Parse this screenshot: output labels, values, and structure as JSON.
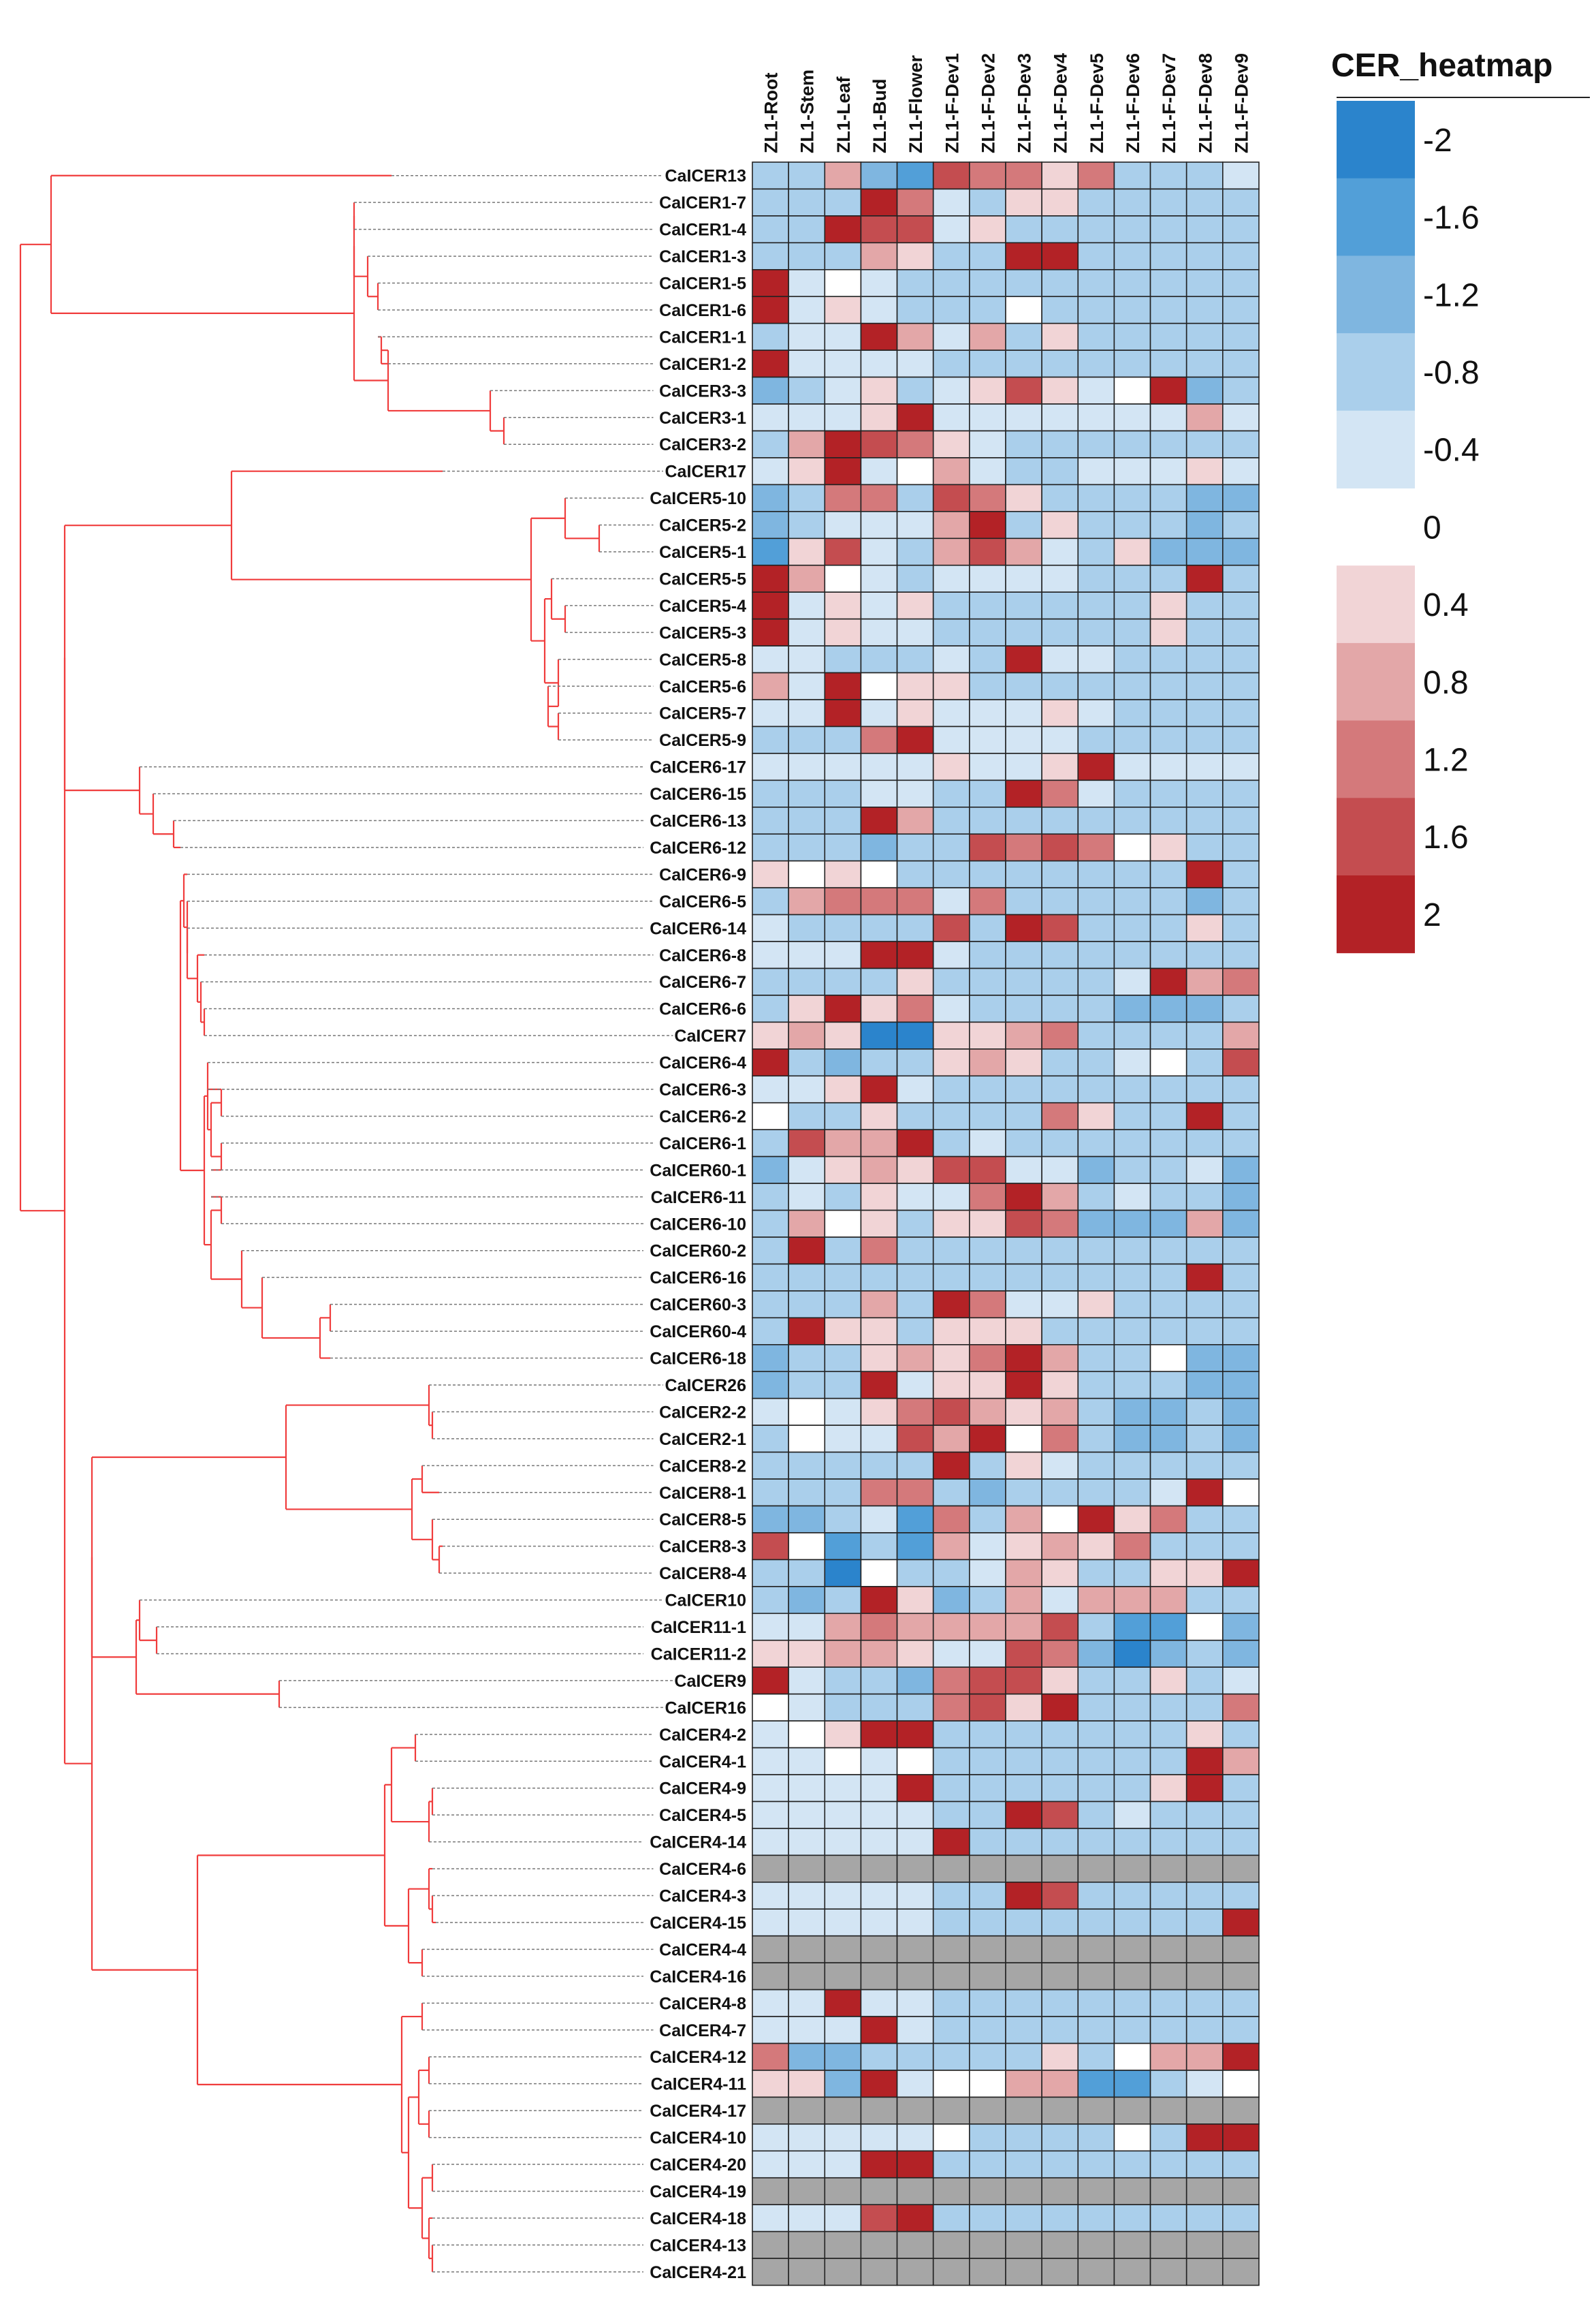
{
  "chart_data": {
    "type": "heatmap",
    "title": "CER_heatmap",
    "columns": [
      "ZL1-Root",
      "ZL1-Stem",
      "ZL1-Leaf",
      "ZL1-Bud",
      "ZL1-Flower",
      "ZL1-F-Dev1",
      "ZL1-F-Dev2",
      "ZL1-F-Dev3",
      "ZL1-F-Dev4",
      "ZL1-F-Dev5",
      "ZL1-F-Dev6",
      "ZL1-F-Dev7",
      "ZL1-F-Dev8",
      "ZL1-F-Dev9"
    ],
    "rows": [
      "CaICER13",
      "CaICER1-7",
      "CaICER1-4",
      "CaICER1-3",
      "CaICER1-5",
      "CaICER1-6",
      "CaICER1-1",
      "CaICER1-2",
      "CaICER3-3",
      "CaICER3-1",
      "CaICER3-2",
      "CaICER17",
      "CaICER5-10",
      "CaICER5-2",
      "CaICER5-1",
      "CaICER5-5",
      "CaICER5-4",
      "CaICER5-3",
      "CaICER5-8",
      "CaICER5-6",
      "CaICER5-7",
      "CaICER5-9",
      "CaICER6-17",
      "CaICER6-15",
      "CaICER6-13",
      "CaICER6-12",
      "CaICER6-9",
      "CaICER6-5",
      "CaICER6-14",
      "CaICER6-8",
      "CaICER6-7",
      "CaICER6-6",
      "CaICER7",
      "CaICER6-4",
      "CaICER6-3",
      "CaICER6-2",
      "CaICER6-1",
      "CaICER60-1",
      "CaICER6-11",
      "CaICER6-10",
      "CaICER60-2",
      "CaICER6-16",
      "CaICER60-3",
      "CaICER60-4",
      "CaICER6-18",
      "CaICER26",
      "CaICER2-2",
      "CaICER2-1",
      "CaICER8-2",
      "CaICER8-1",
      "CaICER8-5",
      "CaICER8-3",
      "CaICER8-4",
      "CaICER10",
      "CaICER11-1",
      "CaICER11-2",
      "CaICER9",
      "CaICER16",
      "CaICER4-2",
      "CaICER4-1",
      "CaICER4-9",
      "CaICER4-5",
      "CaICER4-14",
      "CaICER4-6",
      "CaICER4-3",
      "CaICER4-15",
      "CaICER4-4",
      "CaICER4-16",
      "CaICER4-8",
      "CaICER4-7",
      "CaICER4-12",
      "CaICER4-11",
      "CaICER4-17",
      "CaICER4-10",
      "CaICER4-20",
      "CaICER4-19",
      "CaICER4-18",
      "CaICER4-13",
      "CaICER4-21"
    ],
    "values": [
      [
        -0.8,
        -0.8,
        0.8,
        -1.2,
        -1.6,
        1.6,
        1.2,
        1.2,
        0.4,
        1.2,
        -0.8,
        -0.8,
        -0.8,
        -0.4
      ],
      [
        -0.8,
        -0.8,
        -0.8,
        2,
        1.2,
        -0.4,
        -0.8,
        0.4,
        0.4,
        -0.8,
        -0.8,
        -0.8,
        -0.8,
        -0.8
      ],
      [
        -0.8,
        -0.8,
        2,
        1.6,
        1.6,
        -0.4,
        0.4,
        -0.8,
        -0.8,
        -0.8,
        -0.8,
        -0.8,
        -0.8,
        -0.8
      ],
      [
        -0.8,
        -0.8,
        -0.8,
        0.8,
        0.4,
        -0.8,
        -0.8,
        2,
        2,
        -0.8,
        -0.8,
        -0.8,
        -0.8,
        -0.8
      ],
      [
        2,
        -0.4,
        0,
        -0.4,
        -0.8,
        -0.8,
        -0.8,
        -0.8,
        -0.8,
        -0.8,
        -0.8,
        -0.8,
        -0.8,
        -0.8
      ],
      [
        2,
        -0.4,
        0.4,
        -0.4,
        -0.8,
        -0.8,
        -0.8,
        0,
        -0.8,
        -0.8,
        -0.8,
        -0.8,
        -0.8,
        -0.8
      ],
      [
        -0.8,
        -0.4,
        -0.4,
        2,
        0.8,
        -0.4,
        0.8,
        -0.8,
        0.4,
        -0.8,
        -0.8,
        -0.8,
        -0.8,
        -0.8
      ],
      [
        2,
        -0.4,
        -0.4,
        -0.4,
        -0.4,
        -0.8,
        -0.8,
        -0.8,
        -0.8,
        -0.8,
        -0.8,
        -0.8,
        -0.8,
        -0.8
      ],
      [
        -1.2,
        -0.8,
        -0.4,
        0.4,
        -0.8,
        -0.4,
        0.4,
        1.6,
        0.4,
        -0.4,
        0,
        2,
        -1.2,
        -0.8
      ],
      [
        -0.4,
        -0.4,
        -0.4,
        0.4,
        2,
        -0.4,
        -0.4,
        -0.4,
        -0.4,
        -0.4,
        -0.4,
        -0.4,
        0.8,
        -0.4
      ],
      [
        -0.8,
        0.8,
        2,
        1.6,
        1.2,
        0.4,
        -0.4,
        -0.8,
        -0.8,
        -0.8,
        -0.8,
        -0.8,
        -0.8,
        -0.8
      ],
      [
        -0.4,
        0.4,
        2,
        -0.4,
        0,
        0.8,
        -0.4,
        -0.8,
        -0.8,
        -0.4,
        -0.4,
        -0.4,
        0.4,
        -0.4
      ],
      [
        -1.2,
        -0.8,
        1.2,
        1.2,
        -0.8,
        1.6,
        1.2,
        0.4,
        -0.8,
        -0.8,
        -0.8,
        -0.8,
        -1.2,
        -1.2
      ],
      [
        -1.2,
        -0.8,
        -0.4,
        -0.4,
        -0.4,
        0.8,
        2,
        -0.8,
        0.4,
        -0.8,
        -0.8,
        -0.8,
        -1.2,
        -0.8
      ],
      [
        -1.6,
        0.4,
        1.6,
        -0.4,
        -0.8,
        0.8,
        1.6,
        0.8,
        -0.4,
        -0.8,
        0.4,
        -1.2,
        -1.2,
        -1.2
      ],
      [
        2,
        0.8,
        0,
        -0.4,
        -0.8,
        -0.4,
        -0.4,
        -0.4,
        -0.4,
        -0.8,
        -0.8,
        -0.8,
        2,
        -0.8
      ],
      [
        2,
        -0.4,
        0.4,
        -0.4,
        0.4,
        -0.8,
        -0.8,
        -0.8,
        -0.8,
        -0.8,
        -0.8,
        0.4,
        -0.8,
        -0.8
      ],
      [
        2,
        -0.4,
        0.4,
        -0.4,
        -0.4,
        -0.8,
        -0.8,
        -0.8,
        -0.8,
        -0.8,
        -0.8,
        0.4,
        -0.8,
        -0.8
      ],
      [
        -0.4,
        -0.4,
        -0.8,
        -0.8,
        -0.8,
        -0.4,
        -0.8,
        2,
        -0.4,
        -0.4,
        -0.8,
        -0.8,
        -0.8,
        -0.8
      ],
      [
        0.8,
        -0.4,
        2,
        0,
        0.4,
        0.4,
        -0.8,
        -0.8,
        -0.8,
        -0.8,
        -0.8,
        -0.8,
        -0.8,
        -0.8
      ],
      [
        -0.4,
        -0.4,
        2,
        -0.4,
        0.4,
        -0.4,
        -0.4,
        -0.4,
        0.4,
        -0.4,
        -0.8,
        -0.8,
        -0.8,
        -0.8
      ],
      [
        -0.8,
        -0.8,
        -0.8,
        1.2,
        2,
        -0.4,
        -0.4,
        -0.4,
        -0.4,
        -0.8,
        -0.8,
        -0.8,
        -0.8,
        -0.8
      ],
      [
        -0.4,
        -0.4,
        -0.4,
        -0.4,
        -0.4,
        0.4,
        -0.4,
        -0.4,
        0.4,
        2,
        -0.4,
        -0.4,
        -0.4,
        -0.4
      ],
      [
        -0.8,
        -0.8,
        -0.8,
        -0.4,
        -0.4,
        -0.8,
        -0.8,
        2,
        1.2,
        -0.4,
        -0.8,
        -0.8,
        -0.8,
        -0.8
      ],
      [
        -0.8,
        -0.8,
        -0.8,
        2,
        0.8,
        -0.8,
        -0.8,
        -0.8,
        -0.8,
        -0.8,
        -0.8,
        -0.8,
        -0.8,
        -0.8
      ],
      [
        -0.8,
        -0.8,
        -0.8,
        -1.2,
        -0.8,
        -0.8,
        1.6,
        1.2,
        1.6,
        1.2,
        0,
        0.4,
        -0.8,
        -0.8
      ],
      [
        0.4,
        0,
        0.4,
        0,
        -0.8,
        -0.8,
        -0.8,
        -0.8,
        -0.8,
        -0.8,
        -0.8,
        -0.8,
        2,
        -0.8
      ],
      [
        -0.8,
        0.8,
        1.2,
        1.2,
        1.2,
        -0.4,
        1.2,
        -0.8,
        -0.8,
        -0.8,
        -0.8,
        -0.8,
        -1.2,
        -0.8
      ],
      [
        -0.4,
        -0.8,
        -0.8,
        -0.8,
        -0.8,
        1.6,
        -0.8,
        2,
        1.6,
        -0.8,
        -0.8,
        -0.8,
        0.4,
        -0.8
      ],
      [
        -0.4,
        -0.4,
        -0.4,
        2,
        2,
        -0.4,
        -0.8,
        -0.8,
        -0.8,
        -0.8,
        -0.8,
        -0.8,
        -0.8,
        -0.8
      ],
      [
        -0.8,
        -0.8,
        -0.8,
        -0.8,
        0.4,
        -0.8,
        -0.8,
        -0.8,
        -0.8,
        -0.8,
        -0.4,
        2,
        0.8,
        1.2
      ],
      [
        -0.8,
        0.4,
        2,
        0.4,
        1.2,
        -0.4,
        -0.8,
        -0.8,
        -0.8,
        -0.8,
        -1.2,
        -1.2,
        -1.2,
        -0.8
      ],
      [
        0.4,
        0.8,
        0.4,
        -2,
        -2,
        0.4,
        0.4,
        0.8,
        1.2,
        -0.8,
        -0.8,
        -0.8,
        -0.8,
        0.8
      ],
      [
        2,
        -0.8,
        -1.2,
        -0.8,
        -0.8,
        0.4,
        0.8,
        0.4,
        -0.8,
        -0.8,
        -0.4,
        0,
        -0.8,
        1.6
      ],
      [
        -0.4,
        -0.4,
        0.4,
        2,
        -0.4,
        -0.8,
        -0.8,
        -0.8,
        -0.8,
        -0.8,
        -0.8,
        -0.8,
        -0.8,
        -0.8
      ],
      [
        0,
        -0.8,
        -0.8,
        0.4,
        -0.8,
        -0.8,
        -0.8,
        -0.8,
        1.2,
        0.4,
        -0.8,
        -0.8,
        2,
        -0.8
      ],
      [
        -0.8,
        1.6,
        0.8,
        0.8,
        2,
        -0.8,
        -0.4,
        -0.8,
        -0.8,
        -0.8,
        -0.8,
        -0.8,
        -0.8,
        -0.8
      ],
      [
        -1.2,
        -0.4,
        0.4,
        0.8,
        0.4,
        1.6,
        1.6,
        -0.4,
        -0.4,
        -1.2,
        -0.8,
        -0.8,
        -0.4,
        -1.2
      ],
      [
        -0.8,
        -0.4,
        -0.8,
        0.4,
        -0.4,
        -0.4,
        1.2,
        2,
        0.8,
        -0.8,
        -0.4,
        -0.8,
        -0.8,
        -1.2
      ],
      [
        -0.8,
        0.8,
        0,
        0.4,
        -0.8,
        0.4,
        0.4,
        1.6,
        1.2,
        -1.2,
        -1.2,
        -1.2,
        0.8,
        -1.2
      ],
      [
        -0.8,
        2,
        -0.8,
        1.2,
        -0.8,
        -0.8,
        -0.8,
        -0.8,
        -0.8,
        -0.8,
        -0.8,
        -0.8,
        -0.8,
        -0.8
      ],
      [
        -0.8,
        -0.8,
        -0.8,
        -0.8,
        -0.8,
        -0.8,
        -0.8,
        -0.8,
        -0.8,
        -0.8,
        -0.8,
        -0.8,
        2,
        -0.8
      ],
      [
        -0.8,
        -0.8,
        -0.8,
        0.8,
        -0.8,
        2,
        1.2,
        -0.4,
        -0.4,
        0.4,
        -0.8,
        -0.8,
        -0.8,
        -0.8
      ],
      [
        -0.8,
        2,
        0.4,
        0.4,
        -0.8,
        0.4,
        0.4,
        0.4,
        -0.8,
        -0.8,
        -0.8,
        -0.8,
        -0.8,
        -0.8
      ],
      [
        -1.2,
        -0.8,
        -0.8,
        0.4,
        0.8,
        0.4,
        1.2,
        2,
        0.8,
        -0.8,
        -0.8,
        0,
        -1.2,
        -1.2
      ],
      [
        -1.2,
        -0.8,
        -0.8,
        2,
        -0.4,
        0.4,
        0.4,
        2,
        0.4,
        -0.8,
        -0.8,
        -0.8,
        -1.2,
        -1.2
      ],
      [
        -0.4,
        0,
        -0.4,
        0.4,
        1.2,
        1.6,
        0.8,
        0.4,
        0.8,
        -0.8,
        -1.2,
        -1.2,
        -0.8,
        -1.2
      ],
      [
        -0.8,
        0,
        -0.4,
        -0.4,
        1.6,
        0.8,
        2,
        0,
        1.2,
        -0.8,
        -1.2,
        -1.2,
        -0.8,
        -1.2
      ],
      [
        -0.8,
        -0.8,
        -0.8,
        -0.8,
        -0.8,
        2,
        -0.8,
        0.4,
        -0.4,
        -0.8,
        -0.8,
        -0.8,
        -0.8,
        -0.8
      ],
      [
        -0.8,
        -0.8,
        -0.8,
        1.2,
        1.2,
        -0.8,
        -1.2,
        -0.8,
        -0.8,
        -0.8,
        -0.8,
        -0.4,
        2,
        0
      ],
      [
        -1.2,
        -1.2,
        -0.8,
        -0.4,
        -1.6,
        1.2,
        -0.8,
        0.8,
        0,
        2,
        0.4,
        1.2,
        -0.8,
        -0.8
      ],
      [
        1.6,
        0,
        -1.6,
        -0.8,
        -1.6,
        0.8,
        -0.4,
        0.4,
        0.8,
        0.4,
        1.2,
        -0.8,
        -0.8,
        -0.8
      ],
      [
        -0.8,
        -0.8,
        -2,
        0,
        -0.8,
        -0.8,
        -0.4,
        0.8,
        0.4,
        -0.8,
        -0.8,
        0.4,
        0.4,
        2
      ],
      [
        -0.8,
        -1.2,
        -0.8,
        2,
        0.4,
        -1.2,
        -0.8,
        0.8,
        -0.4,
        0.8,
        0.8,
        0.8,
        -0.8,
        -0.8
      ],
      [
        -0.4,
        -0.4,
        0.8,
        1.2,
        0.8,
        0.8,
        0.8,
        0.8,
        1.6,
        -0.8,
        -1.6,
        -1.6,
        0,
        -1.2
      ],
      [
        0.4,
        0.4,
        0.8,
        0.8,
        0.4,
        -0.4,
        -0.4,
        1.6,
        1.2,
        -1.2,
        -2,
        -1.2,
        -0.8,
        -1.2
      ],
      [
        2,
        -0.4,
        -0.8,
        -0.8,
        -1.2,
        1.2,
        1.6,
        1.6,
        0.4,
        -0.8,
        -0.8,
        0.4,
        -0.8,
        -0.4
      ],
      [
        0,
        -0.4,
        -0.8,
        -0.8,
        -0.8,
        1.2,
        1.6,
        0.4,
        2,
        -0.8,
        -0.8,
        -0.8,
        -0.8,
        1.2
      ],
      [
        -0.4,
        0,
        0.4,
        2,
        2,
        -0.8,
        -0.8,
        -0.8,
        -0.8,
        -0.8,
        -0.8,
        -0.8,
        0.4,
        -0.8
      ],
      [
        -0.4,
        -0.4,
        0,
        -0.4,
        0,
        -0.8,
        -0.8,
        -0.8,
        -0.8,
        -0.8,
        -0.8,
        -0.8,
        2,
        0.8
      ],
      [
        -0.4,
        -0.4,
        -0.4,
        -0.4,
        2,
        -0.8,
        -0.8,
        -0.8,
        -0.8,
        -0.8,
        -0.8,
        0.4,
        2,
        -0.8
      ],
      [
        -0.4,
        -0.4,
        -0.4,
        -0.4,
        -0.4,
        -0.8,
        -0.8,
        2,
        1.6,
        -0.8,
        -0.4,
        -0.8,
        -0.8,
        -0.8
      ],
      [
        -0.4,
        -0.4,
        -0.4,
        -0.4,
        -0.4,
        2,
        -0.8,
        -0.8,
        -0.8,
        -0.8,
        -0.8,
        -0.8,
        -0.8,
        -0.8
      ],
      [
        null,
        null,
        null,
        null,
        null,
        null,
        null,
        null,
        null,
        null,
        null,
        null,
        null,
        null
      ],
      [
        -0.4,
        -0.4,
        -0.4,
        -0.4,
        -0.4,
        -0.8,
        -0.8,
        2,
        1.6,
        -0.8,
        -0.8,
        -0.8,
        -0.8,
        -0.8
      ],
      [
        -0.4,
        -0.4,
        -0.4,
        -0.4,
        -0.4,
        -0.8,
        -0.8,
        -0.8,
        -0.8,
        -0.8,
        -0.8,
        -0.8,
        -0.8,
        2
      ],
      [
        null,
        null,
        null,
        null,
        null,
        null,
        null,
        null,
        null,
        null,
        null,
        null,
        null,
        null
      ],
      [
        null,
        null,
        null,
        null,
        null,
        null,
        null,
        null,
        null,
        null,
        null,
        null,
        null,
        null
      ],
      [
        -0.4,
        -0.4,
        2,
        -0.4,
        -0.4,
        -0.8,
        -0.8,
        -0.8,
        -0.8,
        -0.8,
        -0.8,
        -0.8,
        -0.8,
        -0.8
      ],
      [
        -0.4,
        -0.4,
        -0.4,
        2,
        -0.4,
        -0.8,
        -0.8,
        -0.8,
        -0.8,
        -0.8,
        -0.8,
        -0.8,
        -0.8,
        -0.8
      ],
      [
        1.2,
        -1.2,
        -1.2,
        -0.8,
        -0.8,
        -0.8,
        -0.8,
        -0.8,
        0.4,
        -0.8,
        0,
        0.8,
        0.8,
        2
      ],
      [
        0.4,
        0.4,
        -1.2,
        2,
        -0.4,
        0,
        0,
        0.8,
        0.8,
        -1.6,
        -1.6,
        -0.8,
        -0.4,
        0
      ],
      [
        null,
        null,
        null,
        null,
        null,
        null,
        null,
        null,
        null,
        null,
        null,
        null,
        null,
        null
      ],
      [
        -0.4,
        -0.4,
        -0.4,
        -0.4,
        -0.4,
        0,
        -0.8,
        -0.8,
        -0.8,
        -0.8,
        0,
        -0.8,
        2,
        2
      ],
      [
        -0.4,
        -0.4,
        -0.4,
        2,
        2,
        -0.8,
        -0.8,
        -0.8,
        -0.8,
        -0.8,
        -0.8,
        -0.8,
        -0.8,
        -0.8
      ],
      [
        null,
        null,
        null,
        null,
        null,
        null,
        null,
        null,
        null,
        null,
        null,
        null,
        null,
        null
      ],
      [
        -0.4,
        -0.4,
        -0.4,
        1.6,
        2,
        -0.8,
        -0.8,
        -0.8,
        -0.8,
        -0.8,
        -0.8,
        -0.8,
        -0.8,
        -0.8
      ],
      [
        null,
        null,
        null,
        null,
        null,
        null,
        null,
        null,
        null,
        null,
        null,
        null,
        null,
        null
      ],
      [
        null,
        null,
        null,
        null,
        null,
        null,
        null,
        null,
        null,
        null,
        null,
        null,
        null,
        null
      ]
    ],
    "scale": {
      "min": -2,
      "max": 2,
      "breaks": [
        -2,
        -1.6,
        -1.2,
        -0.8,
        -0.4,
        0,
        0.4,
        0.8,
        1.2,
        1.6,
        2
      ],
      "tick_labels": [
        "-2",
        "-1.6",
        "-1.2",
        "-0.8",
        "-0.4",
        "0",
        "0.4",
        "0.8",
        "1.2",
        "1.6",
        "2"
      ],
      "colors": [
        "#2b84cc",
        "#529fd8",
        "#7fb6e0",
        "#aacfeb",
        "#d3e5f4",
        "#ffffff",
        "#f1d4d6",
        "#e3a7a8",
        "#d4797b",
        "#c44d50",
        "#b32226"
      ],
      "na_color": "#a6a6a6"
    },
    "dendrogram_color": "#f03c3c",
    "legend_position": "top-right"
  }
}
